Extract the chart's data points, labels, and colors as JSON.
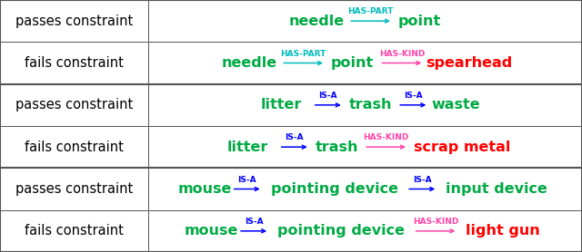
{
  "rows": [
    {
      "group": 0,
      "label": "passes constraint",
      "elements": [
        {
          "text": "needle",
          "color": "#00aa44",
          "type": "word"
        },
        {
          "text": "HAS-PART",
          "color": "#00bbbb",
          "type": "arrow"
        },
        {
          "text": "point",
          "color": "#00aa44",
          "type": "word"
        }
      ]
    },
    {
      "group": 0,
      "label": "fails constraint",
      "elements": [
        {
          "text": "needle",
          "color": "#00aa44",
          "type": "word"
        },
        {
          "text": "HAS-PART",
          "color": "#00bbbb",
          "type": "arrow"
        },
        {
          "text": "point",
          "color": "#00aa44",
          "type": "word"
        },
        {
          "text": "HAS-KIND",
          "color": "#ff44aa",
          "type": "arrow"
        },
        {
          "text": "spearhead",
          "color": "#ff0000",
          "type": "word"
        }
      ]
    },
    {
      "group": 1,
      "label": "passes constraint",
      "elements": [
        {
          "text": "litter",
          "color": "#00aa44",
          "type": "word"
        },
        {
          "text": "IS-A",
          "color": "#0000ff",
          "type": "arrow"
        },
        {
          "text": "trash",
          "color": "#00aa44",
          "type": "word"
        },
        {
          "text": "IS-A",
          "color": "#0000ff",
          "type": "arrow"
        },
        {
          "text": "waste",
          "color": "#00aa44",
          "type": "word"
        }
      ]
    },
    {
      "group": 1,
      "label": "fails constraint",
      "elements": [
        {
          "text": "litter",
          "color": "#00aa44",
          "type": "word"
        },
        {
          "text": "IS-A",
          "color": "#0000ff",
          "type": "arrow"
        },
        {
          "text": "trash",
          "color": "#00aa44",
          "type": "word"
        },
        {
          "text": "HAS-KIND",
          "color": "#ff44aa",
          "type": "arrow"
        },
        {
          "text": "scrap metal",
          "color": "#ff0000",
          "type": "word"
        }
      ]
    },
    {
      "group": 2,
      "label": "passes constraint",
      "elements": [
        {
          "text": "mouse",
          "color": "#00aa44",
          "type": "word"
        },
        {
          "text": "IS-A",
          "color": "#0000ff",
          "type": "arrow"
        },
        {
          "text": "pointing device",
          "color": "#00aa44",
          "type": "word"
        },
        {
          "text": "IS-A",
          "color": "#0000ff",
          "type": "arrow"
        },
        {
          "text": "input device",
          "color": "#00aa44",
          "type": "word"
        }
      ]
    },
    {
      "group": 2,
      "label": "fails constraint",
      "elements": [
        {
          "text": "mouse",
          "color": "#00aa44",
          "type": "word"
        },
        {
          "text": "IS-A",
          "color": "#0000ff",
          "type": "arrow"
        },
        {
          "text": "pointing device",
          "color": "#00aa44",
          "type": "word"
        },
        {
          "text": "HAS-KIND",
          "color": "#ff44aa",
          "type": "arrow"
        },
        {
          "text": "light gun",
          "color": "#ff0000",
          "type": "word"
        }
      ]
    }
  ],
  "col_split": 0.255,
  "background": "#ffffff",
  "label_color": "#000000",
  "label_fontsize": 10.5,
  "content_fontsize": 11.5,
  "arrow_label_fontsize": 6.5,
  "group_thick": 1.5,
  "group_thin": 0.7
}
